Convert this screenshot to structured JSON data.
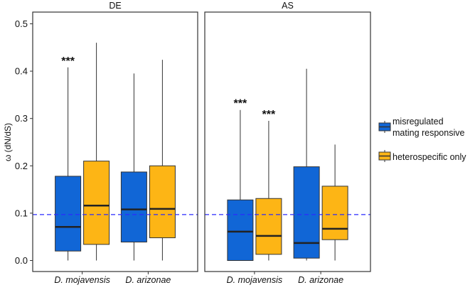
{
  "chart_data": {
    "type": "boxplot",
    "ylabel": "ω (dN/dS)",
    "ylim": [
      -0.02,
      0.525
    ],
    "yticks": [
      "0.0",
      "0.1",
      "0.2",
      "0.3",
      "0.4",
      "0.5"
    ],
    "reference_line": 0.097,
    "reference_line_color": "#2a2aff",
    "categories": [
      "D. mojavensis",
      "D. arizonae"
    ],
    "legend": {
      "position": "right",
      "items": [
        {
          "label_line1": "misregulated",
          "label_line2": "mating responsive",
          "color": "#1166d6"
        },
        {
          "label_line1": "heterospecific only",
          "label_line2": "",
          "color": "#fdb515"
        }
      ]
    },
    "panels": [
      {
        "title": "DE",
        "boxes": [
          {
            "category": "D. mojavensis",
            "series": 0,
            "min": 0,
            "q1": 0.02,
            "median": 0.071,
            "q3": 0.178,
            "max": 0.408,
            "annotation": "***"
          },
          {
            "category": "D. mojavensis",
            "series": 1,
            "min": 0,
            "q1": 0.034,
            "median": 0.116,
            "q3": 0.21,
            "max": 0.46,
            "annotation": ""
          },
          {
            "category": "D. arizonae",
            "series": 0,
            "min": 0,
            "q1": 0.039,
            "median": 0.108,
            "q3": 0.187,
            "max": 0.395,
            "annotation": ""
          },
          {
            "category": "D. arizonae",
            "series": 1,
            "min": 0,
            "q1": 0.048,
            "median": 0.109,
            "q3": 0.2,
            "max": 0.424,
            "annotation": ""
          }
        ]
      },
      {
        "title": "AS",
        "boxes": [
          {
            "category": "D. mojavensis",
            "series": 0,
            "min": 0,
            "q1": 0.0,
            "median": 0.061,
            "q3": 0.128,
            "max": 0.318,
            "annotation": "***"
          },
          {
            "category": "D. mojavensis",
            "series": 1,
            "min": 0,
            "q1": 0.013,
            "median": 0.052,
            "q3": 0.131,
            "max": 0.295,
            "annotation": "***"
          },
          {
            "category": "D. arizonae",
            "series": 0,
            "min": 0,
            "q1": 0.005,
            "median": 0.037,
            "q3": 0.198,
            "max": 0.405,
            "annotation": ""
          },
          {
            "category": "D. arizonae",
            "series": 1,
            "min": 0,
            "q1": 0.044,
            "median": 0.067,
            "q3": 0.157,
            "max": 0.245,
            "annotation": ""
          }
        ]
      }
    ]
  }
}
